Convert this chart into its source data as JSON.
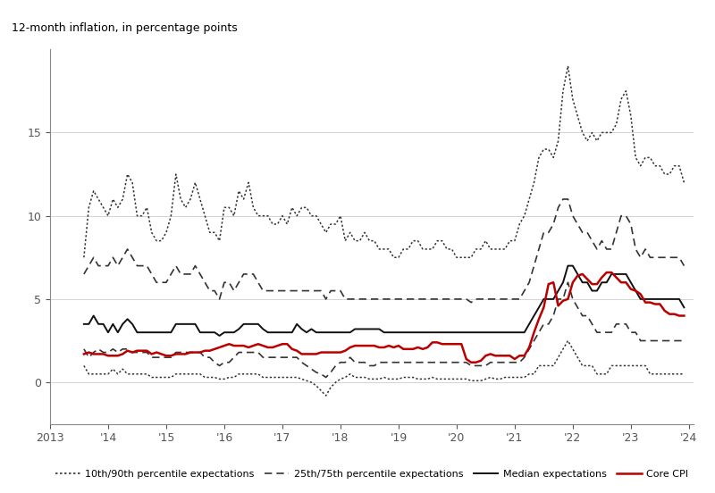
{
  "title_y": "12-month inflation, in percentage points",
  "xlim": [
    2013.0,
    2024.08
  ],
  "ylim": [
    -2.5,
    20
  ],
  "yticks": [
    0,
    5,
    10,
    15
  ],
  "xtick_labels": [
    "2013",
    "'14",
    "'15",
    "'16",
    "'17",
    "'18",
    "'19",
    "'20",
    "'21",
    "'22",
    "'23",
    "'24"
  ],
  "xtick_values": [
    2013,
    2014,
    2015,
    2016,
    2017,
    2018,
    2019,
    2020,
    2021,
    2022,
    2023,
    2024
  ],
  "line_color_grey": "#333333",
  "line_color_red": "#bb0000",
  "dates": [
    2013.583,
    2013.667,
    2013.75,
    2013.833,
    2013.917,
    2014.0,
    2014.083,
    2014.167,
    2014.25,
    2014.333,
    2014.417,
    2014.5,
    2014.583,
    2014.667,
    2014.75,
    2014.833,
    2014.917,
    2015.0,
    2015.083,
    2015.167,
    2015.25,
    2015.333,
    2015.417,
    2015.5,
    2015.583,
    2015.667,
    2015.75,
    2015.833,
    2015.917,
    2016.0,
    2016.083,
    2016.167,
    2016.25,
    2016.333,
    2016.417,
    2016.5,
    2016.583,
    2016.667,
    2016.75,
    2016.833,
    2016.917,
    2017.0,
    2017.083,
    2017.167,
    2017.25,
    2017.333,
    2017.417,
    2017.5,
    2017.583,
    2017.667,
    2017.75,
    2017.833,
    2017.917,
    2018.0,
    2018.083,
    2018.167,
    2018.25,
    2018.333,
    2018.417,
    2018.5,
    2018.583,
    2018.667,
    2018.75,
    2018.833,
    2018.917,
    2019.0,
    2019.083,
    2019.167,
    2019.25,
    2019.333,
    2019.417,
    2019.5,
    2019.583,
    2019.667,
    2019.75,
    2019.833,
    2019.917,
    2020.0,
    2020.083,
    2020.167,
    2020.25,
    2020.333,
    2020.417,
    2020.5,
    2020.583,
    2020.667,
    2020.75,
    2020.833,
    2020.917,
    2021.0,
    2021.083,
    2021.167,
    2021.25,
    2021.333,
    2021.417,
    2021.5,
    2021.583,
    2021.667,
    2021.75,
    2021.833,
    2021.917,
    2022.0,
    2022.083,
    2022.167,
    2022.25,
    2022.333,
    2022.417,
    2022.5,
    2022.583,
    2022.667,
    2022.75,
    2022.833,
    2022.917,
    2023.0,
    2023.083,
    2023.167,
    2023.25,
    2023.333,
    2023.417,
    2023.5,
    2023.583,
    2023.667,
    2023.75,
    2023.833,
    2023.917
  ],
  "p10": [
    1.0,
    0.5,
    0.5,
    0.5,
    0.5,
    0.5,
    0.8,
    0.5,
    0.8,
    0.5,
    0.5,
    0.5,
    0.5,
    0.5,
    0.3,
    0.3,
    0.3,
    0.3,
    0.3,
    0.5,
    0.5,
    0.5,
    0.5,
    0.5,
    0.5,
    0.3,
    0.3,
    0.3,
    0.2,
    0.2,
    0.3,
    0.3,
    0.5,
    0.5,
    0.5,
    0.5,
    0.5,
    0.3,
    0.3,
    0.3,
    0.3,
    0.3,
    0.3,
    0.3,
    0.3,
    0.2,
    0.1,
    0.0,
    -0.2,
    -0.5,
    -0.8,
    -0.3,
    0.0,
    0.2,
    0.3,
    0.5,
    0.3,
    0.3,
    0.3,
    0.2,
    0.2,
    0.2,
    0.3,
    0.2,
    0.2,
    0.2,
    0.3,
    0.3,
    0.3,
    0.2,
    0.2,
    0.2,
    0.3,
    0.2,
    0.2,
    0.2,
    0.2,
    0.2,
    0.2,
    0.2,
    0.1,
    0.1,
    0.1,
    0.2,
    0.3,
    0.2,
    0.2,
    0.3,
    0.3,
    0.3,
    0.3,
    0.3,
    0.5,
    0.5,
    1.0,
    1.0,
    1.0,
    1.0,
    1.5,
    2.0,
    2.5,
    2.0,
    1.5,
    1.0,
    1.0,
    1.0,
    0.5,
    0.5,
    0.5,
    1.0,
    1.0,
    1.0,
    1.0,
    1.0,
    1.0,
    1.0,
    1.0,
    0.5,
    0.5,
    0.5,
    0.5,
    0.5,
    0.5,
    0.5,
    0.5
  ],
  "p25": [
    2.0,
    1.5,
    1.8,
    2.0,
    1.8,
    1.8,
    2.0,
    1.8,
    2.0,
    2.0,
    1.8,
    1.8,
    1.8,
    1.8,
    1.5,
    1.5,
    1.5,
    1.5,
    1.5,
    1.8,
    1.8,
    1.8,
    1.8,
    1.8,
    1.8,
    1.5,
    1.5,
    1.2,
    1.0,
    1.2,
    1.2,
    1.5,
    1.8,
    1.8,
    1.8,
    1.8,
    1.8,
    1.5,
    1.5,
    1.5,
    1.5,
    1.5,
    1.5,
    1.5,
    1.5,
    1.2,
    1.0,
    0.8,
    0.6,
    0.5,
    0.3,
    0.6,
    1.0,
    1.2,
    1.2,
    1.5,
    1.2,
    1.2,
    1.2,
    1.0,
    1.0,
    1.2,
    1.2,
    1.2,
    1.2,
    1.2,
    1.2,
    1.2,
    1.2,
    1.2,
    1.2,
    1.2,
    1.2,
    1.2,
    1.2,
    1.2,
    1.2,
    1.2,
    1.2,
    1.2,
    1.0,
    1.0,
    1.0,
    1.0,
    1.2,
    1.2,
    1.2,
    1.2,
    1.2,
    1.2,
    1.2,
    1.5,
    2.0,
    2.5,
    3.0,
    3.5,
    3.5,
    4.0,
    5.0,
    5.0,
    6.0,
    5.0,
    4.5,
    4.0,
    4.0,
    3.5,
    3.0,
    3.0,
    3.0,
    3.0,
    3.5,
    3.5,
    3.5,
    3.0,
    3.0,
    2.5,
    2.5,
    2.5,
    2.5,
    2.5,
    2.5,
    2.5,
    2.5,
    2.5,
    2.5
  ],
  "p50": [
    3.5,
    3.5,
    4.0,
    3.5,
    3.5,
    3.0,
    3.5,
    3.0,
    3.5,
    3.8,
    3.5,
    3.0,
    3.0,
    3.0,
    3.0,
    3.0,
    3.0,
    3.0,
    3.0,
    3.5,
    3.5,
    3.5,
    3.5,
    3.5,
    3.0,
    3.0,
    3.0,
    3.0,
    2.8,
    3.0,
    3.0,
    3.0,
    3.2,
    3.5,
    3.5,
    3.5,
    3.5,
    3.2,
    3.0,
    3.0,
    3.0,
    3.0,
    3.0,
    3.0,
    3.5,
    3.2,
    3.0,
    3.2,
    3.0,
    3.0,
    3.0,
    3.0,
    3.0,
    3.0,
    3.0,
    3.0,
    3.2,
    3.2,
    3.2,
    3.2,
    3.2,
    3.2,
    3.0,
    3.0,
    3.0,
    3.0,
    3.0,
    3.0,
    3.0,
    3.0,
    3.0,
    3.0,
    3.0,
    3.0,
    3.0,
    3.0,
    3.0,
    3.0,
    3.0,
    3.0,
    3.0,
    3.0,
    3.0,
    3.0,
    3.0,
    3.0,
    3.0,
    3.0,
    3.0,
    3.0,
    3.0,
    3.0,
    3.5,
    4.0,
    4.5,
    5.0,
    5.0,
    5.0,
    5.5,
    6.0,
    7.0,
    7.0,
    6.5,
    6.0,
    6.0,
    5.5,
    5.5,
    6.0,
    6.0,
    6.5,
    6.5,
    6.5,
    6.5,
    6.0,
    5.5,
    5.0,
    5.0,
    5.0,
    5.0,
    5.0,
    5.0,
    5.0,
    5.0,
    5.0,
    4.5
  ],
  "p75": [
    6.5,
    7.0,
    7.5,
    7.0,
    7.0,
    7.0,
    7.5,
    7.0,
    7.5,
    8.0,
    7.5,
    7.0,
    7.0,
    7.0,
    6.5,
    6.0,
    6.0,
    6.0,
    6.5,
    7.0,
    6.5,
    6.5,
    6.5,
    7.0,
    6.5,
    6.0,
    5.5,
    5.5,
    5.0,
    6.0,
    6.0,
    5.5,
    6.0,
    6.5,
    6.5,
    6.5,
    6.0,
    5.5,
    5.5,
    5.5,
    5.5,
    5.5,
    5.5,
    5.5,
    5.5,
    5.5,
    5.5,
    5.5,
    5.5,
    5.5,
    5.0,
    5.5,
    5.5,
    5.5,
    5.0,
    5.0,
    5.0,
    5.0,
    5.0,
    5.0,
    5.0,
    5.0,
    5.0,
    5.0,
    5.0,
    5.0,
    5.0,
    5.0,
    5.0,
    5.0,
    5.0,
    5.0,
    5.0,
    5.0,
    5.0,
    5.0,
    5.0,
    5.0,
    5.0,
    5.0,
    4.8,
    5.0,
    5.0,
    5.0,
    5.0,
    5.0,
    5.0,
    5.0,
    5.0,
    5.0,
    5.0,
    5.5,
    6.0,
    7.0,
    8.0,
    9.0,
    9.0,
    9.5,
    10.5,
    11.0,
    11.0,
    10.0,
    9.5,
    9.0,
    9.0,
    8.5,
    8.0,
    8.5,
    8.0,
    8.0,
    9.0,
    10.0,
    10.0,
    9.5,
    8.0,
    7.5,
    8.0,
    7.5,
    7.5,
    7.5,
    7.5,
    7.5,
    7.5,
    7.5,
    7.0
  ],
  "p90": [
    7.5,
    10.5,
    11.5,
    11.0,
    10.5,
    10.0,
    11.0,
    10.5,
    11.0,
    12.5,
    12.0,
    10.0,
    10.0,
    10.5,
    9.0,
    8.5,
    8.5,
    9.0,
    10.0,
    12.5,
    11.0,
    10.5,
    11.0,
    12.0,
    11.0,
    10.0,
    9.0,
    9.0,
    8.5,
    10.5,
    10.5,
    10.0,
    11.5,
    11.0,
    12.0,
    10.5,
    10.0,
    10.0,
    10.0,
    9.5,
    9.5,
    10.0,
    9.5,
    10.5,
    10.0,
    10.5,
    10.5,
    10.0,
    10.0,
    9.5,
    9.0,
    9.5,
    9.5,
    10.0,
    8.5,
    9.0,
    8.5,
    8.5,
    9.0,
    8.5,
    8.5,
    8.0,
    8.0,
    8.0,
    7.5,
    7.5,
    8.0,
    8.0,
    8.5,
    8.5,
    8.0,
    8.0,
    8.0,
    8.5,
    8.5,
    8.0,
    8.0,
    7.5,
    7.5,
    7.5,
    7.5,
    8.0,
    8.0,
    8.5,
    8.0,
    8.0,
    8.0,
    8.0,
    8.5,
    8.5,
    9.5,
    10.0,
    11.0,
    12.0,
    13.5,
    14.0,
    14.0,
    13.5,
    14.5,
    17.5,
    19.0,
    17.0,
    16.0,
    15.0,
    14.5,
    15.0,
    14.5,
    15.0,
    15.0,
    15.0,
    15.5,
    17.0,
    17.5,
    16.0,
    13.5,
    13.0,
    13.5,
    13.5,
    13.0,
    13.0,
    12.5,
    12.5,
    13.0,
    13.0,
    12.0
  ],
  "core_cpi": [
    1.7,
    1.8,
    1.7,
    1.7,
    1.7,
    1.6,
    1.6,
    1.6,
    1.7,
    1.9,
    1.8,
    1.9,
    1.9,
    1.9,
    1.7,
    1.8,
    1.7,
    1.6,
    1.6,
    1.7,
    1.7,
    1.7,
    1.8,
    1.8,
    1.8,
    1.9,
    1.9,
    2.0,
    2.1,
    2.2,
    2.3,
    2.2,
    2.2,
    2.2,
    2.1,
    2.2,
    2.3,
    2.2,
    2.1,
    2.1,
    2.2,
    2.3,
    2.3,
    2.0,
    1.9,
    1.7,
    1.7,
    1.7,
    1.7,
    1.8,
    1.8,
    1.8,
    1.8,
    1.8,
    1.9,
    2.1,
    2.2,
    2.2,
    2.2,
    2.2,
    2.2,
    2.1,
    2.1,
    2.2,
    2.1,
    2.2,
    2.0,
    2.0,
    2.0,
    2.1,
    2.0,
    2.1,
    2.4,
    2.4,
    2.3,
    2.3,
    2.3,
    2.3,
    2.3,
    1.4,
    1.2,
    1.2,
    1.3,
    1.6,
    1.7,
    1.6,
    1.6,
    1.6,
    1.6,
    1.4,
    1.6,
    1.6,
    2.1,
    3.0,
    3.8,
    4.5,
    5.9,
    6.0,
    4.6,
    4.9,
    5.0,
    6.0,
    6.4,
    6.5,
    6.2,
    5.9,
    5.9,
    6.3,
    6.6,
    6.6,
    6.3,
    6.0,
    6.0,
    5.6,
    5.5,
    5.3,
    4.8,
    4.8,
    4.7,
    4.7,
    4.3,
    4.1,
    4.1,
    4.0,
    4.0
  ]
}
